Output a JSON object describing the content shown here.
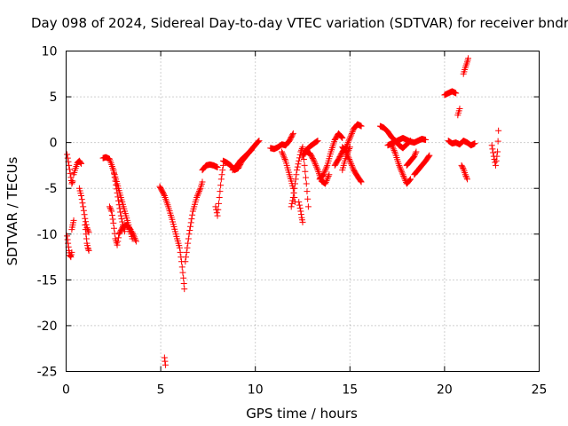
{
  "chart_data": {
    "type": "scatter",
    "title": "Day 098 of 2024, Sidereal Day-to-day VTEC variation (SDTVAR) for receiver bndr",
    "xlabel": "GPS time / hours",
    "ylabel": "SDTVAR / TECUs",
    "xlim": [
      0,
      25
    ],
    "ylim": [
      -25,
      10
    ],
    "xticks": [
      0,
      5,
      10,
      15,
      20,
      25
    ],
    "yticks": [
      -25,
      -20,
      -15,
      -10,
      -5,
      0,
      5,
      10
    ],
    "grid": true,
    "marker": "+",
    "color": "#ff0000",
    "series": [
      {
        "name": "s01",
        "x": [
          0.05,
          0.15,
          0.25,
          0.3,
          0.35
        ],
        "y": [
          -1.3,
          -2.5,
          -3.8,
          -4.5,
          -4.2
        ]
      },
      {
        "name": "s02",
        "x": [
          0.05,
          0.1,
          0.15,
          0.2,
          0.25,
          0.3
        ],
        "y": [
          -10.2,
          -11.0,
          -11.8,
          -12.3,
          -12.5,
          -12.0
        ]
      },
      {
        "name": "s03",
        "x": [
          0.3,
          0.35,
          0.4
        ],
        "y": [
          -9.5,
          -9.0,
          -8.5
        ]
      },
      {
        "name": "s04",
        "x": [
          0.4,
          0.5,
          0.6,
          0.7,
          0.8
        ],
        "y": [
          -3.5,
          -2.8,
          -2.2,
          -2.0,
          -2.3
        ]
      },
      {
        "name": "s05",
        "x": [
          0.7,
          0.8,
          0.9,
          1.0,
          1.1,
          1.2
        ],
        "y": [
          -5.0,
          -5.8,
          -7.0,
          -8.3,
          -9.3,
          -9.8
        ]
      },
      {
        "name": "s06",
        "x": [
          1.0,
          1.05,
          1.1,
          1.15,
          1.2
        ],
        "y": [
          -9.0,
          -10.0,
          -11.0,
          -11.5,
          -11.8
        ]
      },
      {
        "name": "s07",
        "x": [
          1.95,
          2.1,
          2.3,
          2.5,
          2.7,
          2.9,
          3.1,
          3.3,
          3.5
        ],
        "y": [
          -1.7,
          -1.6,
          -1.8,
          -3.0,
          -4.5,
          -6.0,
          -7.5,
          -9.0,
          -10.5
        ]
      },
      {
        "name": "s08",
        "x": [
          2.5,
          2.6,
          2.7,
          2.8,
          2.9,
          3.0,
          3.1
        ],
        "y": [
          -3.0,
          -4.2,
          -5.5,
          -6.8,
          -8.0,
          -9.0,
          -9.7
        ]
      },
      {
        "name": "s09",
        "x": [
          2.3,
          2.4,
          2.5,
          2.6,
          2.7,
          2.8,
          3.0,
          3.2,
          3.4,
          3.5
        ],
        "y": [
          -7.0,
          -7.5,
          -8.8,
          -10.5,
          -11.2,
          -10.0,
          -9.2,
          -9.0,
          -9.5,
          -10.0
        ]
      },
      {
        "name": "s10",
        "x": [
          3.5,
          3.6,
          3.7
        ],
        "y": [
          -9.8,
          -10.3,
          -10.8
        ]
      },
      {
        "name": "s11",
        "x": [
          4.95,
          5.2,
          5.4,
          5.6,
          5.8,
          6.0,
          6.1,
          6.2,
          6.25
        ],
        "y": [
          -4.8,
          -5.8,
          -7.0,
          -8.4,
          -10.0,
          -11.5,
          -13.0,
          -14.8,
          -16.0
        ]
      },
      {
        "name": "s12",
        "x": [
          6.3,
          6.5,
          6.7,
          6.9,
          7.1,
          7.2
        ],
        "y": [
          -13.0,
          -10.0,
          -7.5,
          -6.0,
          -5.0,
          -4.3
        ]
      },
      {
        "name": "s13",
        "x": [
          7.2,
          7.4,
          7.6,
          7.8,
          8.0
        ],
        "y": [
          -3.0,
          -2.5,
          -2.4,
          -2.5,
          -2.7
        ]
      },
      {
        "name": "s14",
        "x": [
          5.2,
          5.25
        ],
        "y": [
          -23.5,
          -24.3
        ]
      },
      {
        "name": "s15",
        "x": [
          7.9,
          8.0,
          8.1,
          8.2,
          8.3
        ],
        "y": [
          -7.0,
          -8.0,
          -6.0,
          -4.0,
          -2.5
        ]
      },
      {
        "name": "s16",
        "x": [
          8.3,
          8.5,
          8.7,
          8.9,
          9.1,
          9.3,
          9.5,
          9.7,
          9.9,
          10.1,
          10.2
        ],
        "y": [
          -2.0,
          -2.2,
          -2.5,
          -3.0,
          -2.8,
          -2.0,
          -1.5,
          -1.0,
          -0.5,
          0.0,
          0.2
        ]
      },
      {
        "name": "s17",
        "x": [
          8.8,
          9.0,
          9.2,
          9.4,
          9.6,
          9.8
        ],
        "y": [
          -3.0,
          -2.6,
          -2.0,
          -1.6,
          -1.2,
          -0.8
        ]
      },
      {
        "name": "s18",
        "x": [
          10.8,
          11.0,
          11.2,
          11.4,
          11.6,
          11.8,
          12.0
        ],
        "y": [
          -0.6,
          -0.7,
          -0.5,
          -0.2,
          -0.3,
          0.2,
          1.0
        ]
      },
      {
        "name": "s19",
        "x": [
          11.4,
          11.6,
          11.8,
          11.9,
          12.0,
          12.1
        ],
        "y": [
          -1.0,
          -2.0,
          -3.5,
          -4.2,
          -5.0,
          -6.5
        ]
      },
      {
        "name": "s20",
        "x": [
          11.9,
          12.0,
          12.1,
          12.2,
          12.3,
          12.4,
          12.5,
          12.6,
          12.7,
          12.8
        ],
        "y": [
          -7.0,
          -6.0,
          -4.5,
          -3.0,
          -2.0,
          -1.0,
          -0.5,
          -2.5,
          -4.5,
          -7.0
        ]
      },
      {
        "name": "s21",
        "x": [
          12.3,
          12.4,
          12.45,
          12.5
        ],
        "y": [
          -6.5,
          -7.5,
          -8.2,
          -8.7
        ]
      },
      {
        "name": "s22",
        "x": [
          12.5,
          12.7,
          12.9,
          13.1,
          13.3
        ],
        "y": [
          -1.5,
          -0.8,
          -0.4,
          -0.1,
          0.2
        ]
      },
      {
        "name": "s23",
        "x": [
          12.7,
          12.9,
          13.1,
          13.3,
          13.5,
          13.7,
          13.9
        ],
        "y": [
          -1.0,
          -1.2,
          -2.0,
          -3.0,
          -4.2,
          -4.5,
          -3.5
        ]
      },
      {
        "name": "s24",
        "x": [
          13.4,
          13.6,
          13.8,
          14.0,
          14.2,
          14.4,
          14.6
        ],
        "y": [
          -4.0,
          -3.5,
          -2.5,
          -1.0,
          0.3,
          1.0,
          0.5
        ]
      },
      {
        "name": "s25",
        "x": [
          14.6,
          14.8,
          15.0,
          15.2,
          15.4,
          15.6
        ],
        "y": [
          -0.5,
          -1.0,
          -2.0,
          -3.0,
          -3.7,
          -4.3
        ]
      },
      {
        "name": "s26",
        "x": [
          14.2,
          14.4,
          14.6,
          14.8,
          15.0,
          15.2,
          15.4,
          15.6
        ],
        "y": [
          -2.5,
          -1.8,
          -1.0,
          -0.5,
          0.5,
          1.5,
          2.0,
          1.8
        ]
      },
      {
        "name": "s27",
        "x": [
          14.6,
          14.8,
          15.0
        ],
        "y": [
          -3.0,
          -1.5,
          -0.5
        ]
      },
      {
        "name": "s28",
        "x": [
          16.6,
          16.8,
          17.0,
          17.2,
          17.4,
          17.6,
          17.8,
          18.0,
          18.2
        ],
        "y": [
          1.8,
          1.6,
          1.2,
          0.6,
          0.2,
          -0.3,
          -0.6,
          -0.2,
          0.2
        ]
      },
      {
        "name": "s29",
        "x": [
          17.0,
          17.2,
          17.4,
          17.6,
          17.8,
          18.0,
          18.2,
          18.4,
          18.6,
          18.8,
          19.0
        ],
        "y": [
          -0.3,
          -0.1,
          0.1,
          0.3,
          0.5,
          0.3,
          0.1,
          0.0,
          0.2,
          0.4,
          0.3
        ]
      },
      {
        "name": "s30",
        "x": [
          17.2,
          17.4,
          17.6,
          17.8,
          18.0,
          18.2
        ],
        "y": [
          -0.2,
          -1.2,
          -2.5,
          -3.5,
          -4.5,
          -4.0
        ]
      },
      {
        "name": "s31",
        "x": [
          18.0,
          18.2,
          18.4,
          18.5
        ],
        "y": [
          -2.5,
          -2.0,
          -1.5,
          -1.0
        ]
      },
      {
        "name": "s32",
        "x": [
          18.4,
          18.6,
          18.8,
          19.0,
          19.2
        ],
        "y": [
          -3.5,
          -3.0,
          -2.5,
          -2.0,
          -1.4
        ]
      },
      {
        "name": "s33",
        "x": [
          20.0,
          20.2,
          20.4,
          20.6
        ],
        "y": [
          5.2,
          5.4,
          5.6,
          5.4
        ]
      },
      {
        "name": "s34",
        "x": [
          20.2,
          20.4,
          20.6,
          20.8,
          21.0,
          21.2,
          21.4,
          21.6
        ],
        "y": [
          0.2,
          -0.1,
          0.0,
          -0.2,
          0.2,
          0.0,
          -0.3,
          -0.1
        ]
      },
      {
        "name": "s35",
        "x": [
          20.7,
          20.8
        ],
        "y": [
          3.0,
          3.7
        ]
      },
      {
        "name": "s36",
        "x": [
          21.0,
          21.1,
          21.2,
          21.25
        ],
        "y": [
          7.5,
          8.2,
          8.8,
          9.2
        ]
      },
      {
        "name": "s37",
        "x": [
          20.9,
          21.0,
          21.1,
          21.2
        ],
        "y": [
          -2.5,
          -2.9,
          -3.5,
          -4.0
        ]
      },
      {
        "name": "s38",
        "x": [
          22.5,
          22.6,
          22.7,
          22.8,
          22.85
        ],
        "y": [
          -0.3,
          -1.5,
          -2.5,
          -1.0,
          1.3
        ]
      }
    ]
  }
}
